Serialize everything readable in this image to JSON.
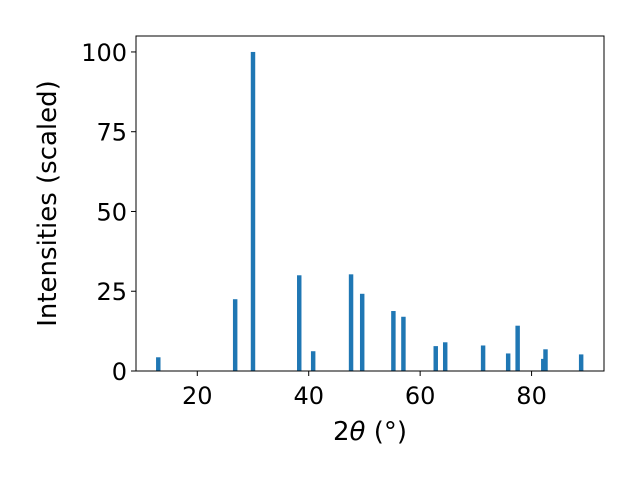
{
  "chart_data": {
    "type": "bar",
    "xlabel_prefix": "2",
    "xlabel_symbol": "θ",
    "xlabel_unit": " (°)",
    "ylabel": "Intensities (scaled)",
    "xlim": [
      9,
      93
    ],
    "ylim": [
      0,
      105
    ],
    "xticks": [
      20,
      40,
      60,
      80
    ],
    "yticks": [
      0,
      25,
      50,
      75,
      100
    ],
    "bar_color": "#1f77b4",
    "bar_width": 0.8,
    "peaks": [
      {
        "x": 13.0,
        "y": 4.3
      },
      {
        "x": 26.8,
        "y": 22.5
      },
      {
        "x": 30.0,
        "y": 100
      },
      {
        "x": 38.3,
        "y": 30.0
      },
      {
        "x": 40.8,
        "y": 6.2
      },
      {
        "x": 47.6,
        "y": 30.3
      },
      {
        "x": 49.6,
        "y": 24.2
      },
      {
        "x": 55.2,
        "y": 18.8
      },
      {
        "x": 57.0,
        "y": 17.0
      },
      {
        "x": 62.8,
        "y": 7.8
      },
      {
        "x": 64.5,
        "y": 9.0
      },
      {
        "x": 71.3,
        "y": 8.0
      },
      {
        "x": 75.8,
        "y": 5.5
      },
      {
        "x": 77.5,
        "y": 14.2
      },
      {
        "x": 82.1,
        "y": 3.8
      },
      {
        "x": 82.5,
        "y": 6.8
      },
      {
        "x": 88.9,
        "y": 5.2
      }
    ]
  }
}
